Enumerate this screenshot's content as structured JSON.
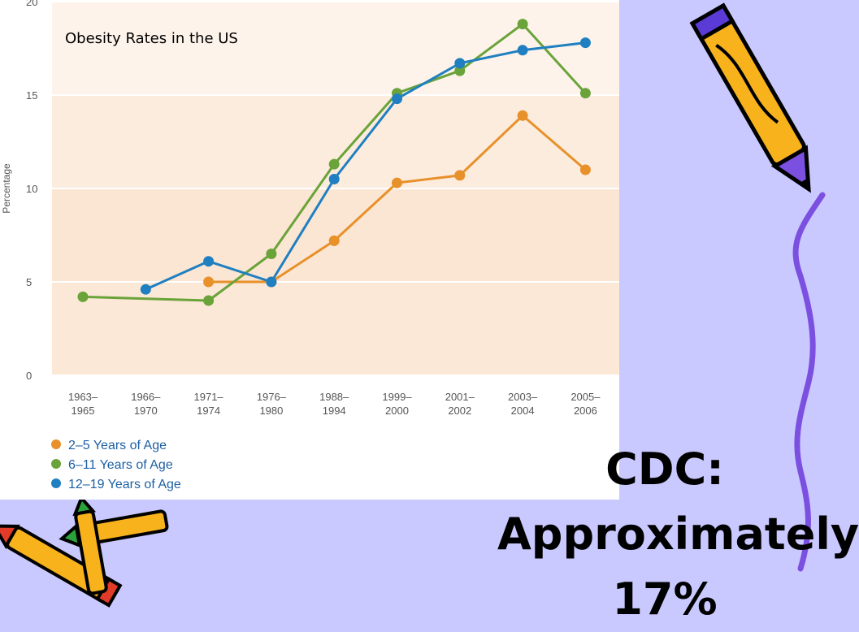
{
  "slide": {
    "background": "#c9c9ff",
    "body_text": "CDC:\nApproximately 17%",
    "decorations": [
      "pencil-icon",
      "crossed-pencils-icon",
      "squiggle-border"
    ]
  },
  "chart_data": {
    "type": "line",
    "title": "Obesity Rates in the US",
    "ylabel": "Percentage",
    "xlabel": "",
    "ylim": [
      0,
      20
    ],
    "yticks": [
      "0",
      "5",
      "10",
      "15",
      "20"
    ],
    "categories": [
      "1963–\n1965",
      "1966–\n1970",
      "1971–\n1974",
      "1976–\n1980",
      "1988–\n1994",
      "1999–\n2000",
      "2001–\n2002",
      "2003–\n2004",
      "2005–\n2006"
    ],
    "series": [
      {
        "name": "2–5 Years of Age",
        "color": "#e8902a",
        "values": [
          null,
          null,
          5.0,
          5.0,
          7.2,
          10.3,
          10.7,
          13.9,
          11.0
        ]
      },
      {
        "name": "6–11 Years of Age",
        "color": "#6aa33a",
        "values": [
          4.2,
          null,
          4.0,
          6.5,
          11.3,
          15.1,
          16.3,
          18.8,
          15.1
        ]
      },
      {
        "name": "12–19 Years of Age",
        "color": "#1f7fc1",
        "values": [
          null,
          4.6,
          6.1,
          5.0,
          10.5,
          14.8,
          16.7,
          17.4,
          17.8
        ]
      }
    ],
    "grid": true,
    "legend_position": "bottom-left"
  }
}
